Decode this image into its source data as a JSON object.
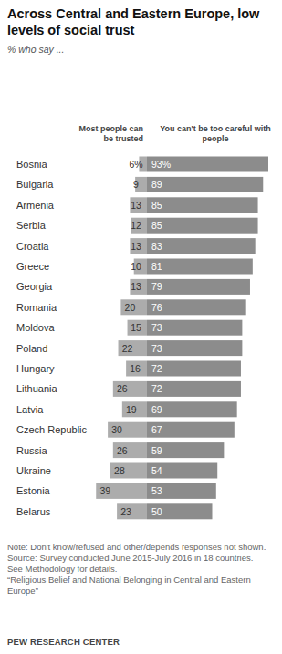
{
  "chart_data": {
    "type": "bar",
    "orientation": "horizontal",
    "title": "Across Central and Eastern Europe, low levels of social trust",
    "subtitle": "% who say ...",
    "categories": [
      "Bosnia",
      "Bulgaria",
      "Armenia",
      "Serbia",
      "Croatia",
      "Greece",
      "Georgia",
      "Romania",
      "Moldova",
      "Poland",
      "Hungary",
      "Lithuania",
      "Latvia",
      "Czech Republic",
      "Russia",
      "Ukraine",
      "Estonia",
      "Belarus"
    ],
    "series": [
      {
        "name": "Most people can be trusted",
        "color": "#acacac",
        "values": [
          6,
          9,
          13,
          12,
          13,
          10,
          13,
          20,
          15,
          22,
          16,
          26,
          19,
          30,
          26,
          28,
          39,
          23
        ],
        "value_labels": [
          "6%",
          "9",
          "13",
          "12",
          "13",
          "10",
          "13",
          "20",
          "15",
          "22",
          "16",
          "26",
          "19",
          "30",
          "26",
          "28",
          "39",
          "23"
        ]
      },
      {
        "name": "You can't be too careful with people",
        "color": "#8c8c8c",
        "values": [
          93,
          89,
          85,
          85,
          83,
          81,
          79,
          76,
          73,
          73,
          72,
          72,
          69,
          67,
          59,
          54,
          53,
          50
        ],
        "value_labels": [
          "93%",
          "89",
          "85",
          "85",
          "83",
          "81",
          "79",
          "76",
          "73",
          "73",
          "72",
          "72",
          "69",
          "67",
          "59",
          "54",
          "53",
          "50"
        ]
      }
    ],
    "xlim": [
      0,
      100
    ],
    "data_labels": true,
    "tick_labels": "y",
    "grid": false,
    "notes": [
      "Note: Don't know/refused and other/depends responses not shown.",
      "Source: Survey conducted June 2015-July 2016 in 18 countries.",
      "See Methodology for details.",
      "“Religious Belief and National Belonging in Central and Eastern Europe”"
    ],
    "credit": "PEW RESEARCH CENTER"
  }
}
